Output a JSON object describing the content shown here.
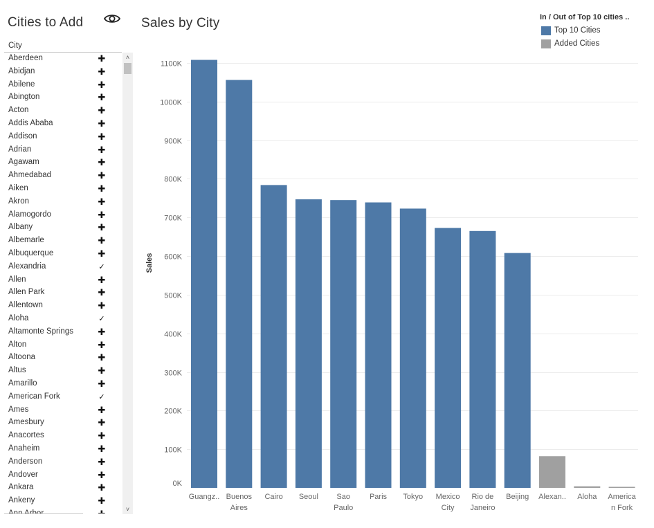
{
  "filter_panel": {
    "title": "Cities to Add",
    "column_header": "City",
    "eye_icon": "eye-icon",
    "items": [
      {
        "city": "Aberdeen",
        "mark": "✚",
        "added": false
      },
      {
        "city": "Abidjan",
        "mark": "✚",
        "added": false
      },
      {
        "city": "Abilene",
        "mark": "✚",
        "added": false
      },
      {
        "city": "Abington",
        "mark": "✚",
        "added": false
      },
      {
        "city": "Acton",
        "mark": "✚",
        "added": false
      },
      {
        "city": "Addis Ababa",
        "mark": "✚",
        "added": false
      },
      {
        "city": "Addison",
        "mark": "✚",
        "added": false
      },
      {
        "city": "Adrian",
        "mark": "✚",
        "added": false
      },
      {
        "city": "Agawam",
        "mark": "✚",
        "added": false
      },
      {
        "city": "Ahmedabad",
        "mark": "✚",
        "added": false
      },
      {
        "city": "Aiken",
        "mark": "✚",
        "added": false
      },
      {
        "city": "Akron",
        "mark": "✚",
        "added": false
      },
      {
        "city": "Alamogordo",
        "mark": "✚",
        "added": false
      },
      {
        "city": "Albany",
        "mark": "✚",
        "added": false
      },
      {
        "city": "Albemarle",
        "mark": "✚",
        "added": false
      },
      {
        "city": "Albuquerque",
        "mark": "✚",
        "added": false
      },
      {
        "city": "Alexandria",
        "mark": "✓",
        "added": true
      },
      {
        "city": "Allen",
        "mark": "✚",
        "added": false
      },
      {
        "city": "Allen Park",
        "mark": "✚",
        "added": false
      },
      {
        "city": "Allentown",
        "mark": "✚",
        "added": false
      },
      {
        "city": "Aloha",
        "mark": "✓",
        "added": true
      },
      {
        "city": "Altamonte Springs",
        "mark": "✚",
        "added": false
      },
      {
        "city": "Alton",
        "mark": "✚",
        "added": false
      },
      {
        "city": "Altoona",
        "mark": "✚",
        "added": false
      },
      {
        "city": "Altus",
        "mark": "✚",
        "added": false
      },
      {
        "city": "Amarillo",
        "mark": "✚",
        "added": false
      },
      {
        "city": "American Fork",
        "mark": "✓",
        "added": true
      },
      {
        "city": "Ames",
        "mark": "✚",
        "added": false
      },
      {
        "city": "Amesbury",
        "mark": "✚",
        "added": false
      },
      {
        "city": "Anacortes",
        "mark": "✚",
        "added": false
      },
      {
        "city": "Anaheim",
        "mark": "✚",
        "added": false
      },
      {
        "city": "Anderson",
        "mark": "✚",
        "added": false
      },
      {
        "city": "Andover",
        "mark": "✚",
        "added": false
      },
      {
        "city": "Ankara",
        "mark": "✚",
        "added": false
      },
      {
        "city": "Ankeny",
        "mark": "✚",
        "added": false
      },
      {
        "city": "Ann Arbor",
        "mark": "✚",
        "added": false
      }
    ],
    "scroll_up_glyph": "˄",
    "scroll_down_glyph": "˅"
  },
  "legend": {
    "title": "In / Out of Top 10 cities ..",
    "items": [
      {
        "label": "Top 10 Cities",
        "color": "#4e79a7"
      },
      {
        "label": "Added Cities",
        "color": "#a0a0a0"
      }
    ]
  },
  "chart_data": {
    "type": "bar",
    "title": "Sales by City",
    "xlabel": "",
    "ylabel": "Sales",
    "ylim": [
      0,
      1150000
    ],
    "yticks": [
      0,
      100000,
      200000,
      300000,
      400000,
      500000,
      600000,
      700000,
      800000,
      900000,
      1000000,
      1100000
    ],
    "ytick_labels": [
      "0K",
      "100K",
      "200K",
      "300K",
      "400K",
      "500K",
      "600K",
      "700K",
      "800K",
      "900K",
      "1000K",
      "1100K"
    ],
    "gridlines": true,
    "categories": [
      [
        "Guangz.."
      ],
      [
        "Buenos",
        "Aires"
      ],
      [
        "Cairo"
      ],
      [
        "Seoul"
      ],
      [
        "Sao",
        "Paulo"
      ],
      [
        "Paris"
      ],
      [
        "Tokyo"
      ],
      [
        "Mexico",
        "City"
      ],
      [
        "Rio de",
        "Janeiro"
      ],
      [
        "Beijing"
      ],
      [
        "Alexan.."
      ],
      [
        "Aloha"
      ],
      [
        "America",
        "n Fork"
      ]
    ],
    "values": [
      1108000,
      1056000,
      784000,
      747000,
      745000,
      739000,
      723000,
      673000,
      665000,
      608000,
      82000,
      4000,
      2000
    ],
    "groups": [
      "Top 10 Cities",
      "Top 10 Cities",
      "Top 10 Cities",
      "Top 10 Cities",
      "Top 10 Cities",
      "Top 10 Cities",
      "Top 10 Cities",
      "Top 10 Cities",
      "Top 10 Cities",
      "Top 10 Cities",
      "Added Cities",
      "Added Cities",
      "Added Cities"
    ],
    "colors": {
      "Top 10 Cities": "#4e79a7",
      "Added Cities": "#a0a0a0"
    }
  }
}
